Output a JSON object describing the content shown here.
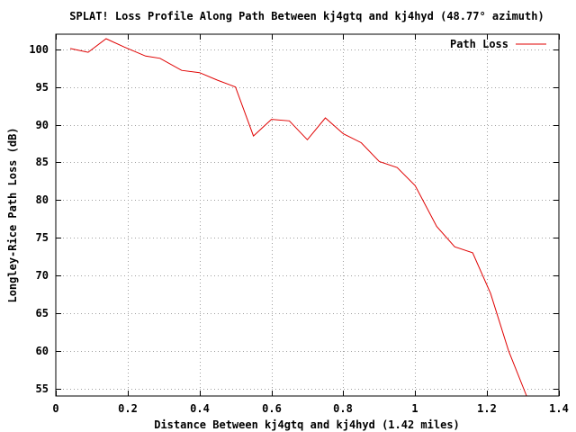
{
  "chart_data": {
    "type": "line",
    "title": "SPLAT! Loss Profile Along Path Between kj4gtq and kj4hyd (48.77° azimuth)",
    "xlabel": "Distance Between kj4gtq and kj4hyd (1.42 miles)",
    "ylabel": "Longley-Rice Path Loss (dB)",
    "xlim": [
      0,
      1.4
    ],
    "ylim": [
      54,
      102
    ],
    "xticks": [
      0,
      0.2,
      0.4,
      0.6,
      0.8,
      1,
      1.2,
      1.4
    ],
    "xtick_labels": [
      "0",
      "0.2",
      "0.4",
      "0.6",
      "0.8",
      "1",
      "1.2",
      "1.4"
    ],
    "yticks": [
      55,
      60,
      65,
      70,
      75,
      80,
      85,
      90,
      95,
      100
    ],
    "ytick_labels": [
      "55",
      "60",
      "65",
      "70",
      "75",
      "80",
      "85",
      "90",
      "95",
      "100"
    ],
    "grid": true,
    "legend_position": "top-right",
    "series": [
      {
        "name": "Path Loss",
        "color": "#e00000",
        "x": [
          0.04,
          0.09,
          0.14,
          0.19,
          0.25,
          0.29,
          0.35,
          0.4,
          0.45,
          0.5,
          0.55,
          0.6,
          0.65,
          0.7,
          0.75,
          0.8,
          0.85,
          0.9,
          0.95,
          1.0,
          1.06,
          1.11,
          1.16,
          1.21,
          1.26,
          1.31
        ],
        "y": [
          100.1,
          99.6,
          101.4,
          100.3,
          99.1,
          98.8,
          97.2,
          96.9,
          95.9,
          95.0,
          88.5,
          90.7,
          90.5,
          88.0,
          90.9,
          88.8,
          87.6,
          85.1,
          84.3,
          81.9,
          76.5,
          73.8,
          73.0,
          67.6,
          60.0,
          54.0
        ]
      }
    ]
  }
}
